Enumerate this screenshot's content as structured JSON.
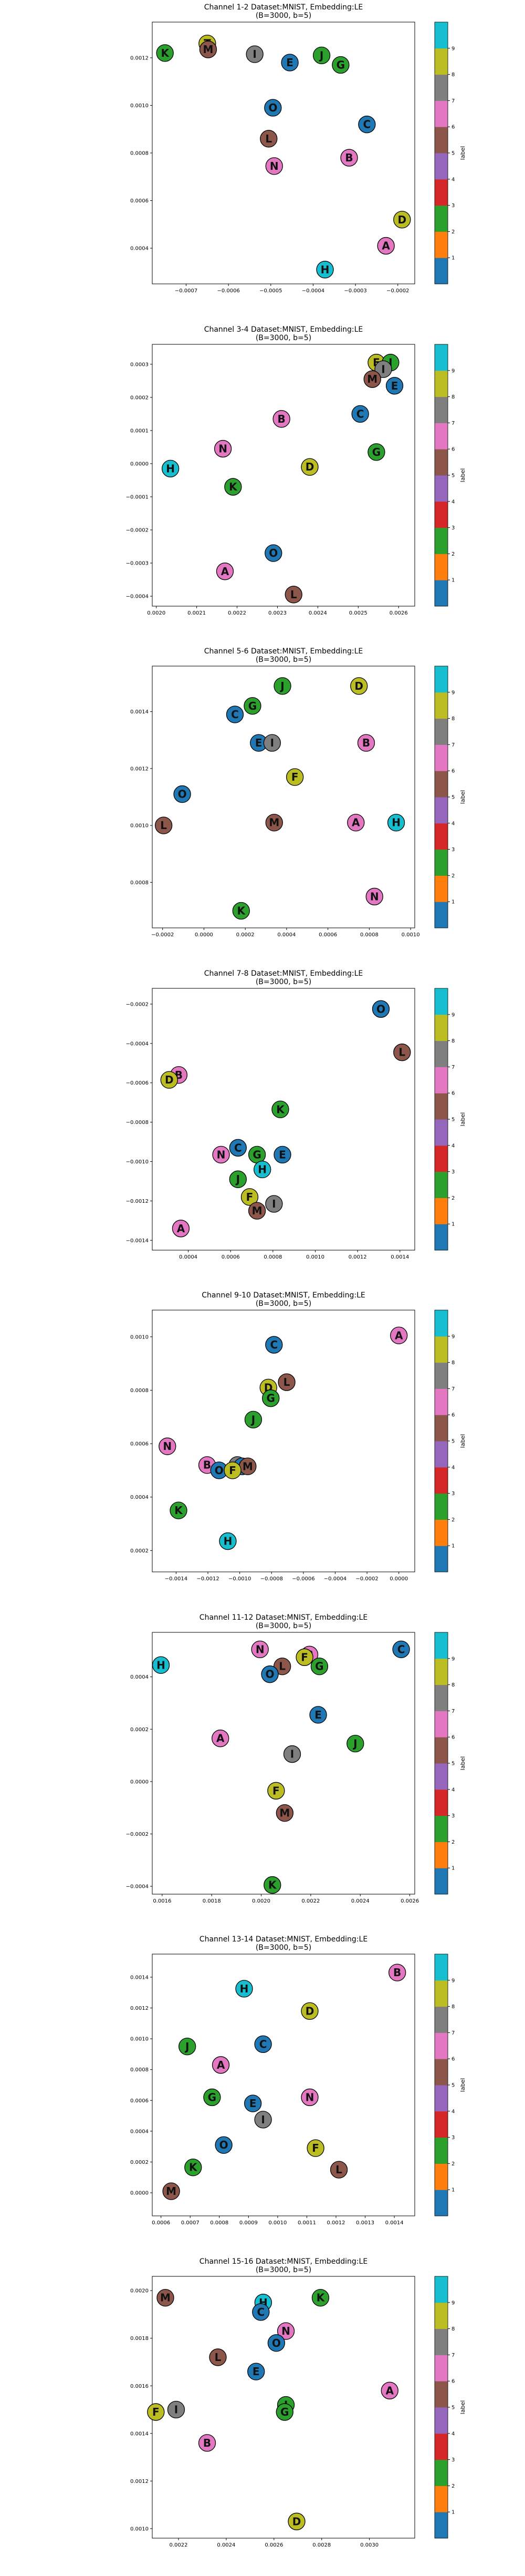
{
  "colorbar": {
    "label": "label",
    "ticks": [
      1,
      2,
      3,
      4,
      5,
      6,
      7,
      8,
      9
    ],
    "colors": [
      "#1f77b4",
      "#ff7f0e",
      "#2ca02c",
      "#d62728",
      "#9467bd",
      "#8c564b",
      "#e377c2",
      "#7f7f7f",
      "#bcbd22",
      "#17becf"
    ]
  },
  "letter_colors": {
    "A": "#e377c2",
    "B": "#e377c2",
    "C": "#1f77b4",
    "D": "#bcbd22",
    "E": "#1f77b4",
    "F": "#bcbd22",
    "G": "#2ca02c",
    "H": "#17becf",
    "I": "#7f7f7f",
    "J": "#2ca02c",
    "K": "#2ca02c",
    "L": "#8c564b",
    "M": "#8c564b",
    "N": "#e377c2",
    "O": "#1f77b4",
    "T": "#bcbd22"
  },
  "chart_data": [
    {
      "type": "scatter",
      "title_lines": [
        "Channel 1-2 Dataset:MNIST, Embedding:LE",
        "(B=3000, b=5)"
      ],
      "xlim": [
        -0.00078,
        -0.00016
      ],
      "ylim": [
        0.00025,
        0.00135
      ],
      "xticks": [
        -0.0007,
        -0.0006,
        -0.0005,
        -0.0004,
        -0.0003,
        -0.0002
      ],
      "xtick_labels": [
        "−0.0007",
        "−0.0006",
        "−0.0005",
        "−0.0004",
        "−0.0003",
        "−0.0002"
      ],
      "yticks": [
        0.0004,
        0.0006,
        0.0008,
        0.001,
        0.0012
      ],
      "ytick_labels": [
        "0.0004",
        "0.0006",
        "0.0008",
        "0.0010",
        "0.0012"
      ],
      "points": [
        {
          "label": "K",
          "x": -0.00075,
          "y": 0.00122
        },
        {
          "label": "T",
          "x": -0.00065,
          "y": 0.00126
        },
        {
          "label": "M",
          "x": -0.000648,
          "y": 0.001235
        },
        {
          "label": "I",
          "x": -0.000538,
          "y": 0.001215
        },
        {
          "label": "E",
          "x": -0.000455,
          "y": 0.00118
        },
        {
          "label": "J",
          "x": -0.00038,
          "y": 0.00121
        },
        {
          "label": "G",
          "x": -0.000335,
          "y": 0.00117
        },
        {
          "label": "O",
          "x": -0.000495,
          "y": 0.00099
        },
        {
          "label": "C",
          "x": -0.000273,
          "y": 0.00092
        },
        {
          "label": "L",
          "x": -0.000505,
          "y": 0.00086
        },
        {
          "label": "B",
          "x": -0.000315,
          "y": 0.00078
        },
        {
          "label": "N",
          "x": -0.000492,
          "y": 0.000745
        },
        {
          "label": "D",
          "x": -0.00019,
          "y": 0.00052
        },
        {
          "label": "A",
          "x": -0.000228,
          "y": 0.00041
        },
        {
          "label": "H",
          "x": -0.000372,
          "y": 0.00031
        }
      ]
    },
    {
      "type": "scatter",
      "title_lines": [
        "Channel 3-4 Dataset:MNIST, Embedding:LE",
        "(B=3000, b=5)"
      ],
      "xlim": [
        0.00199,
        0.00264
      ],
      "ylim": [
        -0.00043,
        0.00036
      ],
      "xticks": [
        0.002,
        0.0021,
        0.0022,
        0.0023,
        0.0024,
        0.0025,
        0.0026
      ],
      "xtick_labels": [
        "0.0020",
        "0.0021",
        "0.0022",
        "0.0023",
        "0.0024",
        "0.0025",
        "0.0026"
      ],
      "yticks": [
        -0.0004,
        -0.0003,
        -0.0002,
        -0.0001,
        0.0,
        0.0001,
        0.0002,
        0.0003
      ],
      "ytick_labels": [
        "−0.0004",
        "−0.0003",
        "−0.0002",
        "−0.0001",
        "0.0000",
        "0.0001",
        "0.0002",
        "0.0003"
      ],
      "points": [
        {
          "label": "F",
          "x": 0.002545,
          "y": 0.000305
        },
        {
          "label": "J",
          "x": 0.00258,
          "y": 0.000305
        },
        {
          "label": "I",
          "x": 0.002562,
          "y": 0.000285
        },
        {
          "label": "M",
          "x": 0.002535,
          "y": 0.000255
        },
        {
          "label": "E",
          "x": 0.00259,
          "y": 0.000235
        },
        {
          "label": "C",
          "x": 0.002505,
          "y": 0.00015
        },
        {
          "label": "B",
          "x": 0.00231,
          "y": 0.000135
        },
        {
          "label": "G",
          "x": 0.002545,
          "y": 3.5e-05
        },
        {
          "label": "N",
          "x": 0.002165,
          "y": 4.5e-05
        },
        {
          "label": "D",
          "x": 0.00238,
          "y": -1e-05
        },
        {
          "label": "H",
          "x": 0.002035,
          "y": -1.5e-05
        },
        {
          "label": "K",
          "x": 0.00219,
          "y": -7e-05
        },
        {
          "label": "O",
          "x": 0.00229,
          "y": -0.00027
        },
        {
          "label": "A",
          "x": 0.00217,
          "y": -0.000325
        },
        {
          "label": "L",
          "x": 0.00234,
          "y": -0.000395
        }
      ]
    },
    {
      "type": "scatter",
      "title_lines": [
        "Channel 5-6 Dataset:MNIST, Embedding:LE",
        "(B=3000, b=5)"
      ],
      "xlim": [
        -0.00025,
        0.00102
      ],
      "ylim": [
        0.00064,
        0.00156
      ],
      "xticks": [
        -0.0002,
        0.0,
        0.0002,
        0.0004,
        0.0006,
        0.0008,
        0.001
      ],
      "xtick_labels": [
        "−0.0002",
        "0.0000",
        "0.0002",
        "0.0004",
        "0.0006",
        "0.0008",
        "0.0010"
      ],
      "yticks": [
        0.0008,
        0.001,
        0.0012,
        0.0014
      ],
      "ytick_labels": [
        "0.0008",
        "0.0010",
        "0.0012",
        "0.0014"
      ],
      "points": [
        {
          "label": "J",
          "x": 0.00038,
          "y": 0.00149
        },
        {
          "label": "D",
          "x": 0.00075,
          "y": 0.00149
        },
        {
          "label": "G",
          "x": 0.000235,
          "y": 0.00142
        },
        {
          "label": "C",
          "x": 0.00015,
          "y": 0.00139
        },
        {
          "label": "E",
          "x": 0.000265,
          "y": 0.00129
        },
        {
          "label": "I",
          "x": 0.00033,
          "y": 0.00129
        },
        {
          "label": "B",
          "x": 0.000785,
          "y": 0.00129
        },
        {
          "label": "F",
          "x": 0.00044,
          "y": 0.00117
        },
        {
          "label": "O",
          "x": -0.000105,
          "y": 0.00111
        },
        {
          "label": "L",
          "x": -0.000195,
          "y": 0.001
        },
        {
          "label": "M",
          "x": 0.00034,
          "y": 0.00101
        },
        {
          "label": "A",
          "x": 0.000735,
          "y": 0.00101
        },
        {
          "label": "H",
          "x": 0.00093,
          "y": 0.00101
        },
        {
          "label": "N",
          "x": 0.000825,
          "y": 0.00075
        },
        {
          "label": "K",
          "x": 0.00018,
          "y": 0.0007
        }
      ]
    },
    {
      "type": "scatter",
      "title_lines": [
        "Channel 7-8 Dataset:MNIST, Embedding:LE",
        "(B=3000, b=5)"
      ],
      "xlim": [
        0.00023,
        0.00147
      ],
      "ylim": [
        -0.00145,
        -0.00012
      ],
      "xticks": [
        0.0004,
        0.0006,
        0.0008,
        0.001,
        0.0012,
        0.0014
      ],
      "xtick_labels": [
        "0.0004",
        "0.0006",
        "0.0008",
        "0.0010",
        "0.0012",
        "0.0014"
      ],
      "yticks": [
        -0.0002,
        -0.0004,
        -0.0006,
        -0.0008,
        -0.001,
        -0.0012,
        -0.0014
      ],
      "ytick_labels": [
        "−0.0002",
        "−0.0004",
        "−0.0006",
        "−0.0008",
        "−0.0010",
        "−0.0012",
        "−0.0014"
      ],
      "points": [
        {
          "label": "O",
          "x": 0.00131,
          "y": -0.000225
        },
        {
          "label": "L",
          "x": 0.00141,
          "y": -0.000445
        },
        {
          "label": "B",
          "x": 0.000355,
          "y": -0.00056
        },
        {
          "label": "D",
          "x": 0.00031,
          "y": -0.000585
        },
        {
          "label": "K",
          "x": 0.000835,
          "y": -0.000735
        },
        {
          "label": "C",
          "x": 0.000635,
          "y": -0.00093
        },
        {
          "label": "N",
          "x": 0.000555,
          "y": -0.000965
        },
        {
          "label": "G",
          "x": 0.000725,
          "y": -0.000965
        },
        {
          "label": "E",
          "x": 0.000845,
          "y": -0.000965
        },
        {
          "label": "H",
          "x": 0.00075,
          "y": -0.00104
        },
        {
          "label": "J",
          "x": 0.000635,
          "y": -0.00109
        },
        {
          "label": "F",
          "x": 0.00069,
          "y": -0.00118
        },
        {
          "label": "I",
          "x": 0.000805,
          "y": -0.001215
        },
        {
          "label": "M",
          "x": 0.000725,
          "y": -0.00125
        },
        {
          "label": "A",
          "x": 0.000365,
          "y": -0.00134
        }
      ]
    },
    {
      "type": "scatter",
      "title_lines": [
        "Channel 9-10 Dataset:MNIST, Embedding:LE",
        "(B=3000, b=5)"
      ],
      "xlim": [
        -0.00155,
        0.0001
      ],
      "ylim": [
        0.00012,
        0.0011
      ],
      "xticks": [
        -0.0014,
        -0.0012,
        -0.001,
        -0.0008,
        -0.0006,
        -0.0004,
        -0.0002,
        0.0
      ],
      "xtick_labels": [
        "−0.0014",
        "−0.0012",
        "−0.0010",
        "−0.0008",
        "−0.0006",
        "−0.0004",
        "−0.0002",
        "0.0000"
      ],
      "yticks": [
        0.0002,
        0.0004,
        0.0006,
        0.0008,
        0.001
      ],
      "ytick_labels": [
        "0.0002",
        "0.0004",
        "0.0006",
        "0.0008",
        "0.0010"
      ],
      "points": [
        {
          "label": "A",
          "x": 0.0,
          "y": 0.001005
        },
        {
          "label": "C",
          "x": -0.000785,
          "y": 0.00097
        },
        {
          "label": "L",
          "x": -0.000705,
          "y": 0.00083
        },
        {
          "label": "D",
          "x": -0.00082,
          "y": 0.00081
        },
        {
          "label": "G",
          "x": -0.000805,
          "y": 0.00077
        },
        {
          "label": "J",
          "x": -0.000915,
          "y": 0.00069
        },
        {
          "label": "N",
          "x": -0.001455,
          "y": 0.00059
        },
        {
          "label": "B",
          "x": -0.001205,
          "y": 0.00052
        },
        {
          "label": "I",
          "x": -0.001015,
          "y": 0.00052
        },
        {
          "label": "E",
          "x": -0.000985,
          "y": 0.000515
        },
        {
          "label": "M",
          "x": -0.00095,
          "y": 0.000515
        },
        {
          "label": "O",
          "x": -0.00113,
          "y": 0.0005
        },
        {
          "label": "F",
          "x": -0.001045,
          "y": 0.0005
        },
        {
          "label": "K",
          "x": -0.001385,
          "y": 0.00035
        },
        {
          "label": "H",
          "x": -0.001075,
          "y": 0.000235
        }
      ]
    },
    {
      "type": "scatter",
      "title_lines": [
        "Channel 11-12 Dataset:MNIST, Embedding:LE",
        "(B=3000, b=5)"
      ],
      "xlim": [
        0.00156,
        0.00262
      ],
      "ylim": [
        -0.00043,
        0.00057
      ],
      "xticks": [
        0.0016,
        0.0018,
        0.002,
        0.0022,
        0.0024,
        0.0026
      ],
      "xtick_labels": [
        "0.0016",
        "0.0018",
        "0.0020",
        "0.0022",
        "0.0024",
        "0.0026"
      ],
      "yticks": [
        -0.0004,
        -0.0002,
        0.0,
        0.0002,
        0.0004
      ],
      "ytick_labels": [
        "−0.0004",
        "−0.0002",
        "0.0000",
        "0.0002",
        "0.0004"
      ],
      "points": [
        {
          "label": "C",
          "x": 0.002565,
          "y": 0.000505
        },
        {
          "label": "N",
          "x": 0.001995,
          "y": 0.000505
        },
        {
          "label": "B",
          "x": 0.002195,
          "y": 0.000485
        },
        {
          "label": "F",
          "x": 0.002175,
          "y": 0.000475
        },
        {
          "label": "H",
          "x": 0.001595,
          "y": 0.000445
        },
        {
          "label": "L",
          "x": 0.002085,
          "y": 0.00044
        },
        {
          "label": "G",
          "x": 0.002235,
          "y": 0.00044
        },
        {
          "label": "O",
          "x": 0.002035,
          "y": 0.00041
        },
        {
          "label": "E",
          "x": 0.00223,
          "y": 0.000255
        },
        {
          "label": "A",
          "x": 0.001835,
          "y": 0.000165
        },
        {
          "label": "J",
          "x": 0.00238,
          "y": 0.000145
        },
        {
          "label": "I",
          "x": 0.002125,
          "y": 0.000105
        },
        {
          "label": "F",
          "x": 0.00206,
          "y": -3.5e-05
        },
        {
          "label": "M",
          "x": 0.002095,
          "y": -0.00012
        },
        {
          "label": "K",
          "x": 0.002045,
          "y": -0.000395
        }
      ]
    },
    {
      "type": "scatter",
      "title_lines": [
        "Channel 13-14 Dataset:MNIST, Embedding:LE",
        "(B=3000, b=5)"
      ],
      "xlim": [
        0.00057,
        0.00147
      ],
      "ylim": [
        -0.00015,
        0.00155
      ],
      "xticks": [
        0.0006,
        0.0007,
        0.0008,
        0.0009,
        0.001,
        0.0011,
        0.0012,
        0.0013,
        0.0014
      ],
      "xtick_labels": [
        "0.0006",
        "0.0007",
        "0.0008",
        "0.0009",
        "0.0010",
        "0.0011",
        "0.0012",
        "0.0013",
        "0.0014"
      ],
      "yticks": [
        0.0,
        0.0002,
        0.0004,
        0.0006,
        0.0008,
        0.001,
        0.0012,
        0.0014
      ],
      "ytick_labels": [
        "0.0000",
        "0.0002",
        "0.0004",
        "0.0006",
        "0.0008",
        "0.0010",
        "0.0012",
        "0.0014"
      ],
      "points": [
        {
          "label": "B",
          "x": 0.00141,
          "y": 0.00143
        },
        {
          "label": "H",
          "x": 0.000885,
          "y": 0.001325
        },
        {
          "label": "D",
          "x": 0.00111,
          "y": 0.00118
        },
        {
          "label": "J",
          "x": 0.00069,
          "y": 0.00095
        },
        {
          "label": "C",
          "x": 0.00095,
          "y": 0.000965
        },
        {
          "label": "A",
          "x": 0.000805,
          "y": 0.00083
        },
        {
          "label": "G",
          "x": 0.000775,
          "y": 0.00062
        },
        {
          "label": "N",
          "x": 0.00111,
          "y": 0.00062
        },
        {
          "label": "E",
          "x": 0.000915,
          "y": 0.00058
        },
        {
          "label": "I",
          "x": 0.00095,
          "y": 0.000475
        },
        {
          "label": "O",
          "x": 0.000815,
          "y": 0.00031
        },
        {
          "label": "F",
          "x": 0.00113,
          "y": 0.00029
        },
        {
          "label": "K",
          "x": 0.00071,
          "y": 0.000165
        },
        {
          "label": "L",
          "x": 0.00121,
          "y": 0.00015
        },
        {
          "label": "M",
          "x": 0.000635,
          "y": 1e-05
        }
      ]
    },
    {
      "type": "scatter",
      "title_lines": [
        "Channel 15-16 Dataset:MNIST, Embedding:LE",
        "(B=3000, b=5)"
      ],
      "xlim": [
        0.00209,
        0.00319
      ],
      "ylim": [
        0.00096,
        0.00206
      ],
      "xticks": [
        0.0022,
        0.0024,
        0.0026,
        0.0028,
        0.003
      ],
      "xtick_labels": [
        "0.0022",
        "0.0024",
        "0.0026",
        "0.0028",
        "0.0030"
      ],
      "yticks": [
        0.001,
        0.0012,
        0.0014,
        0.0016,
        0.0018,
        0.002
      ],
      "ytick_labels": [
        "0.0010",
        "0.0012",
        "0.0014",
        "0.0016",
        "0.0018",
        "0.0020"
      ],
      "points": [
        {
          "label": "M",
          "x": 0.002145,
          "y": 0.00197
        },
        {
          "label": "K",
          "x": 0.002795,
          "y": 0.00197
        },
        {
          "label": "H",
          "x": 0.002555,
          "y": 0.00195
        },
        {
          "label": "C",
          "x": 0.002545,
          "y": 0.00191
        },
        {
          "label": "N",
          "x": 0.00265,
          "y": 0.00183
        },
        {
          "label": "O",
          "x": 0.00261,
          "y": 0.00178
        },
        {
          "label": "L",
          "x": 0.002365,
          "y": 0.00172
        },
        {
          "label": "E",
          "x": 0.002525,
          "y": 0.00166
        },
        {
          "label": "A",
          "x": 0.003085,
          "y": 0.00158
        },
        {
          "label": "J",
          "x": 0.00265,
          "y": 0.00152
        },
        {
          "label": "G",
          "x": 0.002645,
          "y": 0.00149
        },
        {
          "label": "F",
          "x": 0.002105,
          "y": 0.00149
        },
        {
          "label": "I",
          "x": 0.00219,
          "y": 0.0015
        },
        {
          "label": "B",
          "x": 0.00232,
          "y": 0.00136
        },
        {
          "label": "D",
          "x": 0.002695,
          "y": 0.00103
        }
      ]
    }
  ]
}
